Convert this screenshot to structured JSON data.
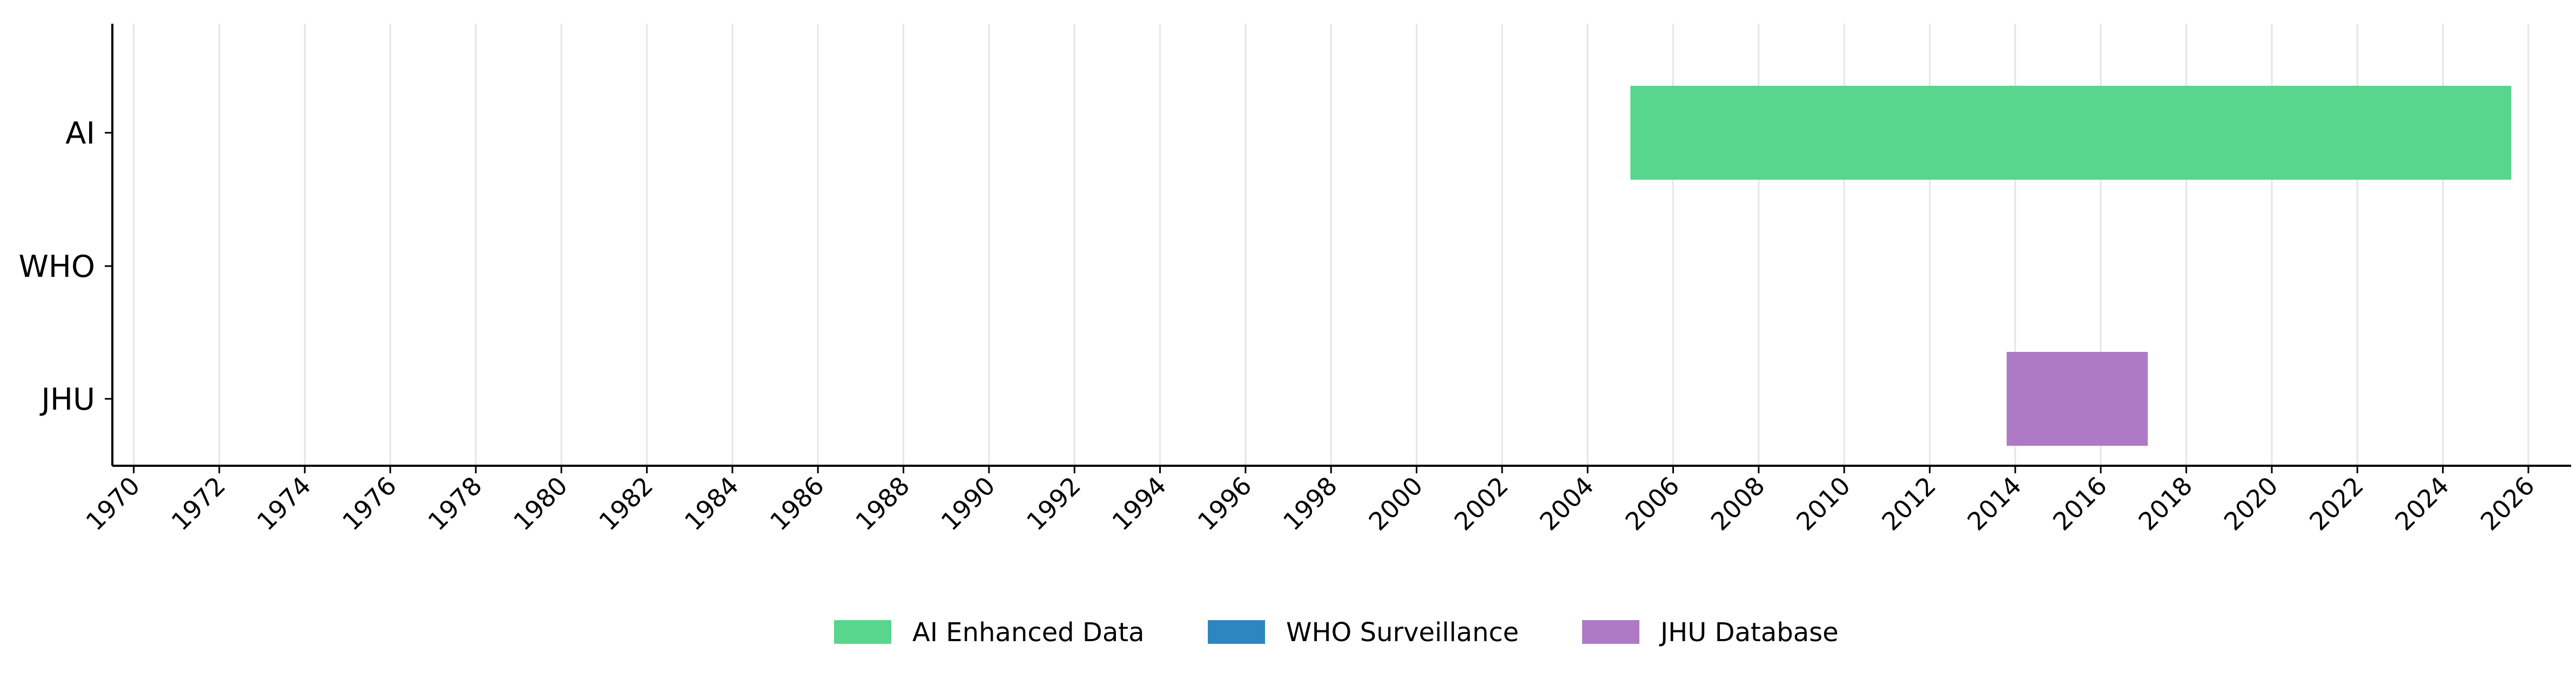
{
  "chart_data": {
    "type": "timeline",
    "title": "",
    "xlabel": "",
    "ylabel": "",
    "xlim": [
      1969.5,
      2027.0
    ],
    "grid": "vertical",
    "legend_placement": "bottom-center",
    "x_ticks": [
      "1970",
      "1972",
      "1974",
      "1976",
      "1978",
      "1980",
      "1982",
      "1984",
      "1986",
      "1988",
      "1990",
      "1992",
      "1994",
      "1996",
      "1998",
      "2000",
      "2002",
      "2004",
      "2006",
      "2008",
      "2010",
      "2012",
      "2014",
      "2016",
      "2018",
      "2020",
      "2022",
      "2024",
      "2026"
    ],
    "categories": [
      "AI",
      "WHO",
      "JHU"
    ],
    "bars": [
      {
        "category": "AI",
        "start": 2005.0,
        "end": 2025.6,
        "color": "#58d68d"
      },
      {
        "category": "JHU",
        "start": 2013.8,
        "end": 2017.1,
        "color": "#af7ac5"
      }
    ],
    "legend": [
      {
        "label": "AI Enhanced Data",
        "color": "#58d68d"
      },
      {
        "label": "WHO Surveillance",
        "color": "#2e86c1"
      },
      {
        "label": "JHU Database",
        "color": "#af7ac5"
      }
    ]
  }
}
